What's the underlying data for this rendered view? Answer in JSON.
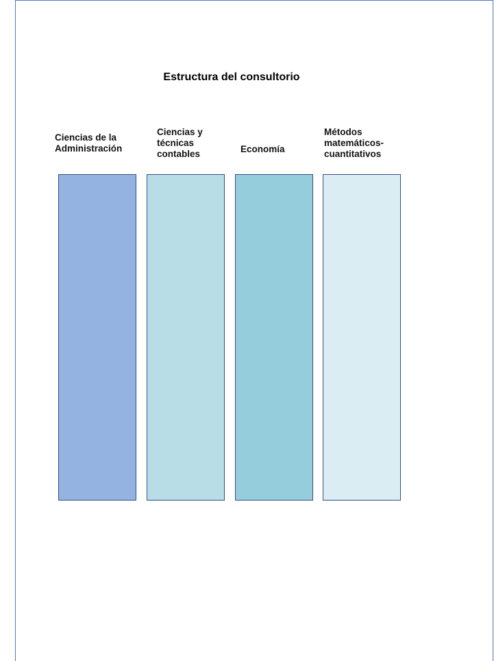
{
  "title": "Estructura del consultorio",
  "columns": [
    {
      "label": "Ciencias de la\nAdministración",
      "fill": "#95b3e0"
    },
    {
      "label": "Ciencias y\ntécnicas\ncontables",
      "fill": "#b8dde6"
    },
    {
      "label": "Economía",
      "fill": "#96cddd"
    },
    {
      "label": "Métodos\nmatemáticos-\ncuantitativos",
      "fill": "#daedf3"
    }
  ]
}
